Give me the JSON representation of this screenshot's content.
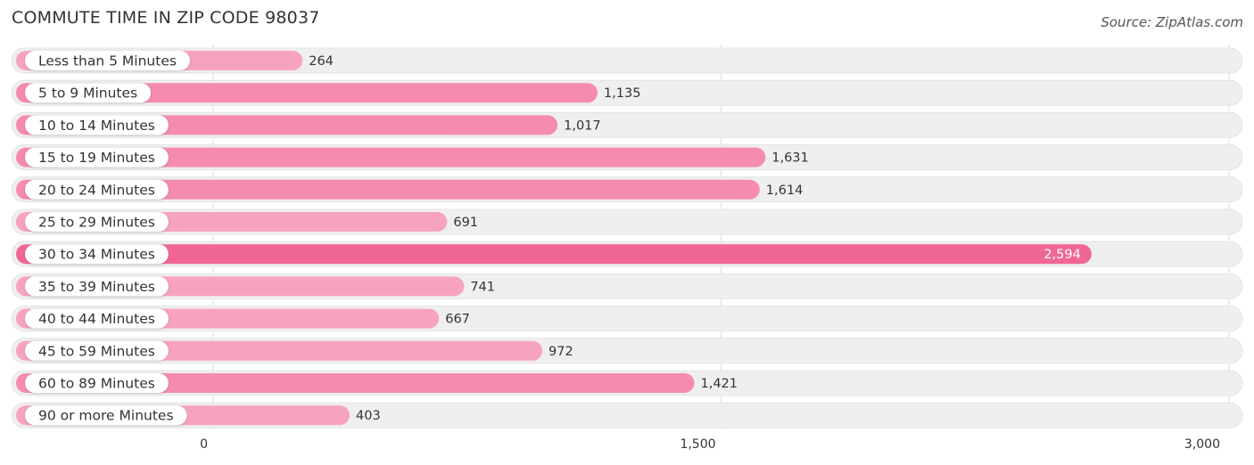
{
  "title": "COMMUTE TIME IN ZIP CODE 98037",
  "source": "Source: ZipAtlas.com",
  "colors": {
    "bar_light": "#f7a3bf",
    "bar_mid": "#f58bb0",
    "bar_max": "#f06794",
    "track": "#efefef",
    "grid": "#dddddd"
  },
  "chart_data": {
    "type": "bar",
    "orientation": "horizontal",
    "categories": [
      "Less than 5 Minutes",
      "5 to 9 Minutes",
      "10 to 14 Minutes",
      "15 to 19 Minutes",
      "20 to 24 Minutes",
      "25 to 29 Minutes",
      "30 to 34 Minutes",
      "35 to 39 Minutes",
      "40 to 44 Minutes",
      "45 to 59 Minutes",
      "60 to 89 Minutes",
      "90 or more Minutes"
    ],
    "values": [
      264,
      1135,
      1017,
      1631,
      1614,
      691,
      2594,
      741,
      667,
      972,
      1421,
      403
    ],
    "value_labels": [
      "264",
      "1,135",
      "1,017",
      "1,631",
      "1,614",
      "691",
      "2,594",
      "741",
      "667",
      "972",
      "1,421",
      "403"
    ],
    "xlim": [
      0,
      3000
    ],
    "xticks": [
      0,
      1500,
      3000
    ],
    "xtick_labels": [
      "0",
      "1,500",
      "3,000"
    ],
    "grid": true,
    "legend": "none"
  }
}
